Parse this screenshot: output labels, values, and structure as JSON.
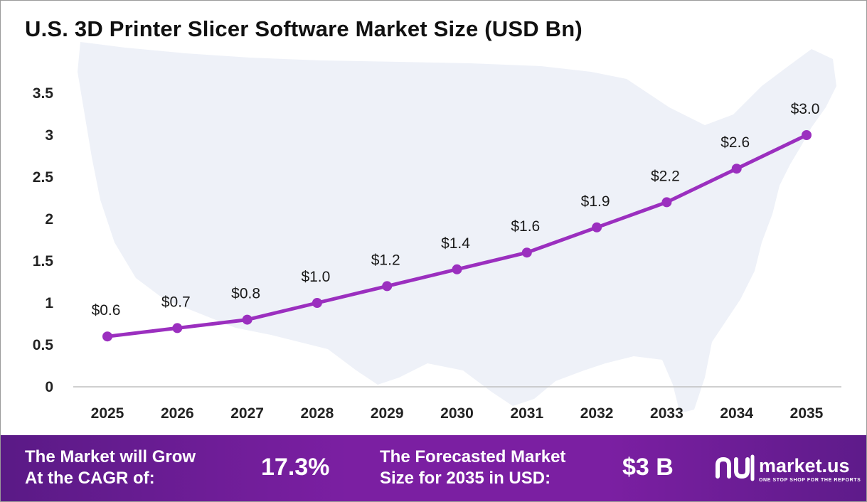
{
  "title": "U.S. 3D Printer Slicer Software Market Size (USD Bn)",
  "chart_data": {
    "type": "line",
    "title": "U.S. 3D Printer Slicer Software Market Size (USD Bn)",
    "categories": [
      "2025",
      "2026",
      "2027",
      "2028",
      "2029",
      "2030",
      "2031",
      "2032",
      "2033",
      "2034",
      "2035"
    ],
    "values": [
      0.6,
      0.7,
      0.8,
      1.0,
      1.2,
      1.4,
      1.6,
      1.9,
      2.2,
      2.6,
      3.0
    ],
    "data_labels": [
      "$0.6",
      "$0.7",
      "$0.8",
      "$1.0",
      "$1.2",
      "$1.4",
      "$1.6",
      "$1.9",
      "$2.2",
      "$2.6",
      "$3.0"
    ],
    "y_ticks": [
      0,
      0.5,
      1,
      1.5,
      2,
      2.5,
      3,
      3.5
    ],
    "y_tick_labels": [
      "0",
      "0.5",
      "1",
      "1.5",
      "2",
      "2.5",
      "3",
      "3.5"
    ],
    "ylim": [
      0,
      3.5
    ],
    "grid": false,
    "legend": "none",
    "line_color": "#9b2fbf"
  },
  "footer": {
    "cagr_label_1": "The Market will Grow",
    "cagr_label_2": "At the CAGR of:",
    "cagr_value": "17.3%",
    "forecast_label_1": "The Forecasted Market",
    "forecast_label_2": "Size for 2035 in USD:",
    "forecast_value": "$3 B",
    "brand_name": "market.us",
    "brand_tagline": "ONE STOP SHOP FOR THE REPORTS"
  },
  "colors": {
    "footer_bg": "#7b1fa2",
    "map_bg": "#eef1f8"
  }
}
